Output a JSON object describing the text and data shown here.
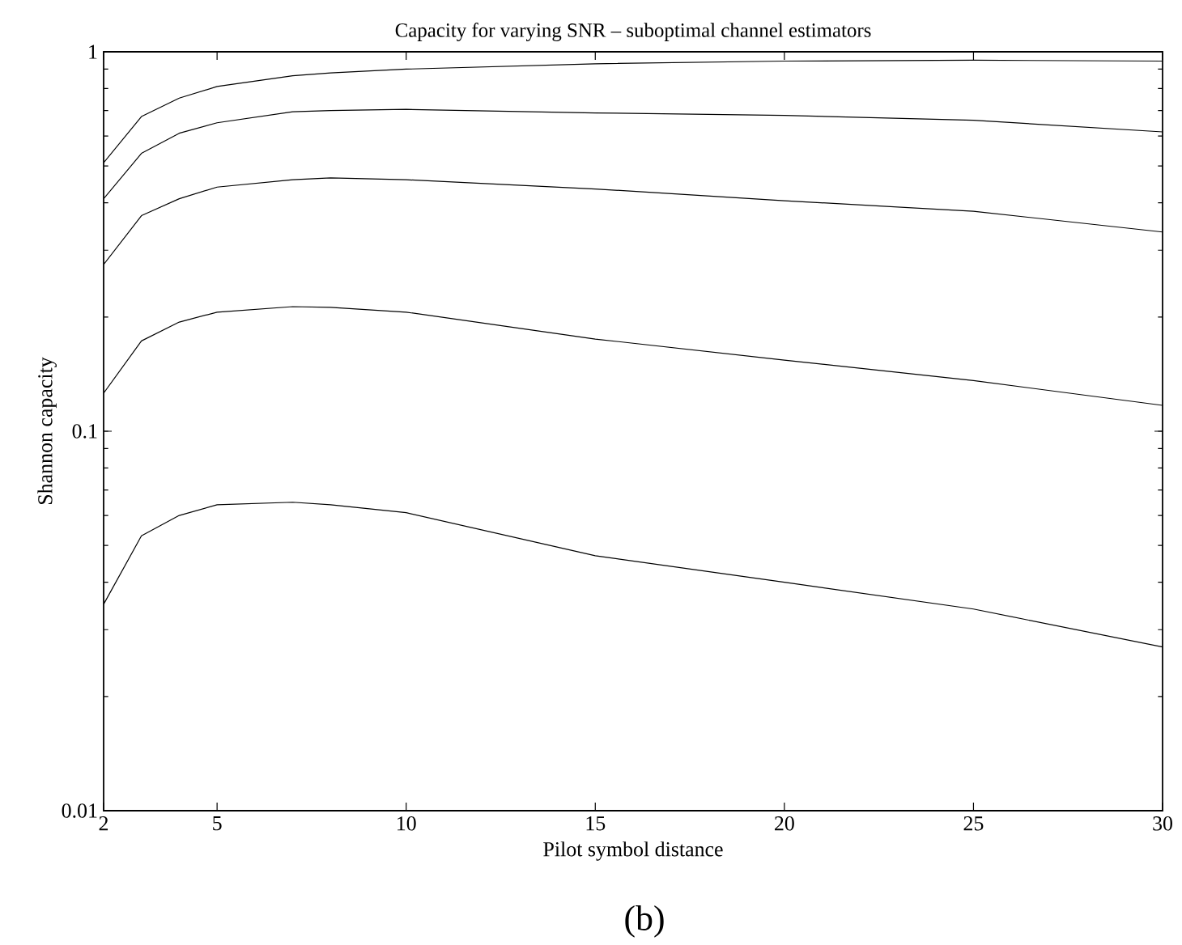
{
  "chart_data": {
    "type": "line",
    "title": "Capacity for varying SNR – suboptimal channel estimators",
    "xlabel": "Pilot symbol distance",
    "ylabel": "Shannon capacity",
    "annotations": [
      "(b)"
    ],
    "log": "y",
    "xlim": [
      2,
      30
    ],
    "ylim": [
      0.01,
      1
    ],
    "xticks": [
      2,
      5,
      10,
      15,
      20,
      25,
      30
    ],
    "yticks": [
      0.01,
      0.1,
      1
    ],
    "grid": false,
    "marker": "none",
    "line_style": "solid",
    "x": [
      2,
      3,
      4,
      5,
      7,
      8,
      10,
      15,
      20,
      25,
      30
    ],
    "series": [
      {
        "color": "#000000",
        "values": [
          0.51,
          0.675,
          0.755,
          0.81,
          0.865,
          0.88,
          0.9,
          0.93,
          0.945,
          0.95,
          0.945
        ]
      },
      {
        "color": "#000000",
        "values": [
          0.41,
          0.54,
          0.61,
          0.65,
          0.695,
          0.7,
          0.705,
          0.69,
          0.68,
          0.66,
          0.615
        ]
      },
      {
        "color": "#000000",
        "values": [
          0.275,
          0.37,
          0.41,
          0.44,
          0.46,
          0.465,
          0.46,
          0.435,
          0.405,
          0.38,
          0.335
        ]
      },
      {
        "color": "#000000",
        "values": [
          0.126,
          0.173,
          0.194,
          0.206,
          0.213,
          0.212,
          0.206,
          0.175,
          0.154,
          0.136,
          0.117
        ]
      },
      {
        "color": "#000000",
        "values": [
          0.035,
          0.053,
          0.06,
          0.064,
          0.065,
          0.064,
          0.061,
          0.047,
          0.04,
          0.034,
          0.027
        ]
      }
    ]
  }
}
